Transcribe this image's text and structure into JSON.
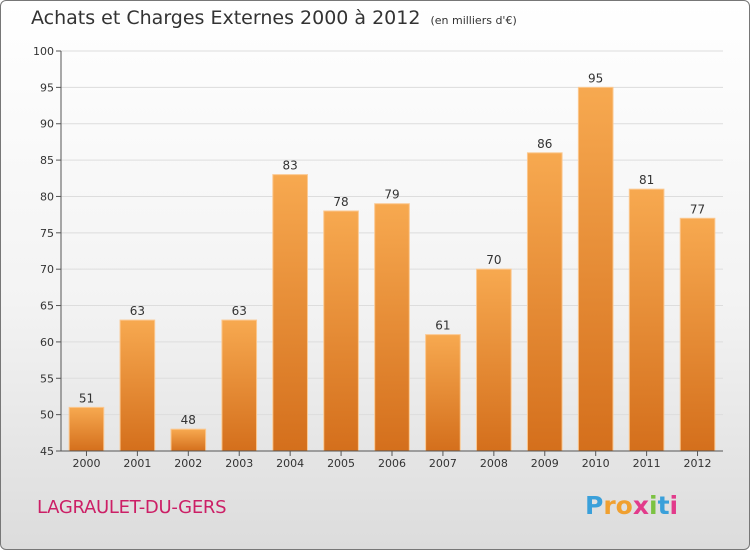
{
  "header": {
    "title": "Achats et Charges Externes 2000 à 2012",
    "subtitle": "(en milliers d'€)"
  },
  "footer": {
    "commune": "LAGRAULET-DU-GERS",
    "logo_letters": [
      "P",
      "r",
      "o",
      "x",
      "i",
      "t",
      "i"
    ],
    "logo_colors": [
      "#3aa0da",
      "#f0a030",
      "#f0a030",
      "#e23b8b",
      "#7cc242",
      "#3aa0da",
      "#e23b8b"
    ]
  },
  "colors": {
    "bar_top": "#f7a950",
    "bar_bottom": "#d46f1c",
    "grid": "#dddddd",
    "axis": "#555555",
    "text": "#333333"
  },
  "chart_data": {
    "type": "bar",
    "title": "Achats et Charges Externes 2000 à 2012",
    "subtitle": "(en milliers d'€)",
    "categories": [
      "2000",
      "2001",
      "2002",
      "2003",
      "2004",
      "2005",
      "2006",
      "2007",
      "2008",
      "2009",
      "2010",
      "2011",
      "2012"
    ],
    "values": [
      51,
      63,
      48,
      63,
      83,
      78,
      79,
      61,
      70,
      86,
      95,
      81,
      77
    ],
    "value_labels": [
      "51",
      "63",
      "48",
      "63",
      "83",
      "78",
      "79",
      "61",
      "70",
      "86",
      "95",
      "81",
      "77"
    ],
    "ylim": [
      45,
      100
    ],
    "yticks": [
      45,
      50,
      55,
      60,
      65,
      70,
      75,
      80,
      85,
      90,
      95,
      100
    ],
    "ytick_labels": [
      "45",
      "50",
      "55",
      "60",
      "65",
      "70",
      "75",
      "80",
      "85",
      "90",
      "95",
      "100"
    ],
    "grid": true,
    "xlabel": "",
    "ylabel": ""
  }
}
